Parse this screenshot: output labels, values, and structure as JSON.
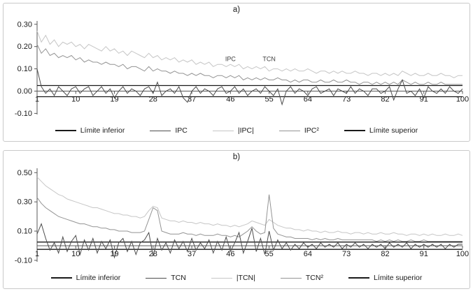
{
  "page": {
    "background": "#ffffff"
  },
  "chart_data": [
    {
      "type": "line",
      "title": "a)",
      "xlabel": "",
      "ylabel": "",
      "xlim": [
        1,
        100
      ],
      "ylim": [
        -0.105,
        0.315
      ],
      "x_ticks": [
        1,
        10,
        19,
        28,
        37,
        46,
        55,
        64,
        73,
        82,
        91,
        100
      ],
      "y_ticks": [
        0.3,
        0.2,
        0.1,
        0.0,
        -0.1
      ],
      "y_tick_labels": [
        "0.30",
        "0.20",
        "0.10",
        "0.00",
        "-0.10"
      ],
      "grid": false,
      "legend_position": "bottom",
      "draw_order": [
        2,
        3,
        0,
        4,
        1
      ],
      "annotations": [
        {
          "text": "IPC",
          "x": 46,
          "y": 0.135
        },
        {
          "text": "TCN",
          "x": 55,
          "y": 0.135
        }
      ],
      "series": [
        {
          "name": "Límite inferior",
          "color": "#1a1a1a",
          "lw": 1.3,
          "value": -0.025
        },
        {
          "name": "IPC",
          "color": "#4d4d4d",
          "lw": 1,
          "values": [
            0.1,
            0.02,
            -0.01,
            0.01,
            -0.02,
            0.02,
            0.0,
            -0.02,
            0.01,
            0.02,
            -0.01,
            0.01,
            0.02,
            -0.02,
            0.0,
            0.02,
            -0.01,
            0.01,
            -0.03,
            0.0,
            0.02,
            -0.01,
            0.01,
            0.0,
            -0.02,
            0.01,
            0.02,
            -0.01,
            0.04,
            -0.02,
            0.0,
            0.01,
            -0.01,
            0.02,
            -0.03,
            -0.05,
            0.0,
            0.02,
            -0.01,
            0.01,
            0.0,
            -0.02,
            0.01,
            0.02,
            -0.01,
            0.0,
            0.02,
            -0.01,
            0.01,
            -0.02,
            0.0,
            0.01,
            -0.01,
            0.02,
            0.0,
            -0.02,
            0.01,
            -0.06,
            0.0,
            0.02,
            -0.01,
            0.01,
            0.0,
            -0.02,
            0.01,
            0.02,
            -0.01,
            0.0,
            0.01,
            -0.02,
            0.01,
            0.0,
            -0.01,
            0.02,
            -0.01,
            0.01,
            0.0,
            -0.02,
            0.01,
            0.01,
            -0.01,
            0.0,
            0.02,
            -0.04,
            0.01,
            0.05,
            -0.01,
            0.0,
            -0.02,
            0.01,
            -0.03,
            0.02,
            0.0,
            -0.01,
            0.01,
            -0.01,
            0.02,
            0.0,
            -0.01,
            0.01
          ]
        },
        {
          "name": "|IPC|",
          "color": "#c6c6c6",
          "lw": 1,
          "values": [
            0.27,
            0.22,
            0.25,
            0.21,
            0.23,
            0.2,
            0.22,
            0.21,
            0.22,
            0.2,
            0.21,
            0.19,
            0.21,
            0.2,
            0.19,
            0.18,
            0.2,
            0.18,
            0.19,
            0.17,
            0.18,
            0.16,
            0.18,
            0.17,
            0.16,
            0.15,
            0.17,
            0.15,
            0.16,
            0.14,
            0.15,
            0.14,
            0.15,
            0.13,
            0.14,
            0.13,
            0.14,
            0.12,
            0.13,
            0.12,
            0.13,
            0.11,
            0.12,
            0.12,
            0.11,
            0.12,
            0.11,
            0.12,
            0.1,
            0.11,
            0.1,
            0.11,
            0.1,
            0.11,
            0.09,
            0.1,
            0.1,
            0.09,
            0.1,
            0.09,
            0.1,
            0.09,
            0.09,
            0.1,
            0.09,
            0.08,
            0.09,
            0.09,
            0.08,
            0.09,
            0.08,
            0.09,
            0.08,
            0.08,
            0.09,
            0.08,
            0.08,
            0.07,
            0.08,
            0.08,
            0.07,
            0.08,
            0.07,
            0.08,
            0.07,
            0.09,
            0.08,
            0.07,
            0.08,
            0.07,
            0.07,
            0.08,
            0.07,
            0.07,
            0.08,
            0.07,
            0.07,
            0.06,
            0.07,
            0.07
          ]
        },
        {
          "name": "IPC²",
          "color": "#949494",
          "lw": 1,
          "values": [
            0.21,
            0.17,
            0.19,
            0.16,
            0.17,
            0.15,
            0.16,
            0.15,
            0.16,
            0.14,
            0.15,
            0.13,
            0.14,
            0.13,
            0.13,
            0.12,
            0.13,
            0.12,
            0.12,
            0.11,
            0.12,
            0.1,
            0.11,
            0.11,
            0.1,
            0.09,
            0.11,
            0.09,
            0.1,
            0.09,
            0.09,
            0.08,
            0.09,
            0.08,
            0.08,
            0.07,
            0.08,
            0.07,
            0.08,
            0.07,
            0.07,
            0.06,
            0.07,
            0.07,
            0.06,
            0.07,
            0.06,
            0.07,
            0.05,
            0.06,
            0.05,
            0.06,
            0.05,
            0.06,
            0.05,
            0.05,
            0.06,
            0.05,
            0.05,
            0.04,
            0.05,
            0.04,
            0.05,
            0.05,
            0.04,
            0.04,
            0.05,
            0.04,
            0.04,
            0.05,
            0.04,
            0.04,
            0.05,
            0.04,
            0.04,
            0.03,
            0.04,
            0.04,
            0.03,
            0.04,
            0.03,
            0.04,
            0.03,
            0.04,
            0.03,
            0.05,
            0.04,
            0.03,
            0.04,
            0.03,
            0.03,
            0.04,
            0.03,
            0.03,
            0.04,
            0.03,
            0.03,
            0.03,
            0.03,
            0.03
          ]
        },
        {
          "name": "Límite superior",
          "color": "#1a1a1a",
          "lw": 1.3,
          "value": 0.025
        }
      ]
    },
    {
      "type": "line",
      "title": "b)",
      "xlabel": "",
      "ylabel": "",
      "xlim": [
        1,
        100
      ],
      "ylim": [
        -0.11,
        0.53
      ],
      "x_ticks": [
        1,
        10,
        19,
        28,
        37,
        46,
        55,
        64,
        73,
        82,
        91,
        100
      ],
      "y_ticks": [
        0.5,
        0.3,
        0.1,
        -0.1
      ],
      "y_tick_labels": [
        "0.50",
        "0.30",
        "0.10",
        "-0.10"
      ],
      "grid": false,
      "legend_position": "bottom",
      "draw_order": [
        2,
        3,
        0,
        4,
        1
      ],
      "annotations": [],
      "series": [
        {
          "name": "Límite inferior",
          "color": "#1a1a1a",
          "lw": 1.3,
          "value": -0.025
        },
        {
          "name": "TCN",
          "color": "#4d4d4d",
          "lw": 1,
          "values": [
            0.08,
            0.15,
            0.05,
            -0.03,
            0.02,
            -0.05,
            0.06,
            -0.04,
            0.03,
            0.07,
            -0.06,
            0.04,
            -0.03,
            0.05,
            -0.05,
            0.03,
            -0.02,
            0.04,
            -0.08,
            0.02,
            0.05,
            -0.04,
            0.03,
            -0.06,
            0.02,
            0.04,
            0.09,
            -0.07,
            0.05,
            -0.03,
            0.02,
            -0.05,
            0.04,
            -0.02,
            0.03,
            -0.04,
            0.05,
            -0.03,
            0.02,
            -0.02,
            0.04,
            -0.05,
            0.03,
            -0.03,
            0.06,
            -0.04,
            0.02,
            0.09,
            -0.05,
            0.03,
            0.12,
            -0.04,
            0.05,
            -0.06,
            0.1,
            -0.03,
            0.04,
            -0.02,
            0.02,
            -0.03,
            0.01,
            -0.02,
            0.02,
            -0.01,
            0.01,
            -0.02,
            0.02,
            -0.01,
            0.01,
            -0.01,
            0.02,
            -0.02,
            0.01,
            -0.01,
            0.02,
            -0.01,
            0.01,
            -0.02,
            0.01,
            -0.01,
            0.01,
            -0.02,
            0.02,
            -0.01,
            0.01,
            -0.01,
            0.02,
            -0.02,
            0.01,
            -0.01,
            0.01,
            -0.01,
            0.01,
            -0.01,
            0.01,
            -0.02,
            0.01,
            -0.01,
            0.01,
            0.01
          ]
        },
        {
          "name": "|TCN|",
          "color": "#c6c6c6",
          "lw": 1,
          "values": [
            0.47,
            0.44,
            0.41,
            0.39,
            0.37,
            0.35,
            0.34,
            0.32,
            0.31,
            0.3,
            0.29,
            0.28,
            0.27,
            0.26,
            0.26,
            0.25,
            0.24,
            0.23,
            0.22,
            0.22,
            0.21,
            0.21,
            0.2,
            0.2,
            0.19,
            0.2,
            0.24,
            0.27,
            0.26,
            0.19,
            0.18,
            0.17,
            0.17,
            0.16,
            0.17,
            0.16,
            0.16,
            0.15,
            0.16,
            0.15,
            0.15,
            0.14,
            0.15,
            0.14,
            0.14,
            0.13,
            0.14,
            0.13,
            0.14,
            0.15,
            0.17,
            0.16,
            0.15,
            0.14,
            0.18,
            0.16,
            0.14,
            0.13,
            0.12,
            0.12,
            0.11,
            0.11,
            0.1,
            0.11,
            0.1,
            0.1,
            0.09,
            0.1,
            0.09,
            0.09,
            0.1,
            0.09,
            0.09,
            0.08,
            0.09,
            0.09,
            0.08,
            0.09,
            0.08,
            0.08,
            0.09,
            0.08,
            0.08,
            0.09,
            0.08,
            0.08,
            0.07,
            0.08,
            0.08,
            0.07,
            0.08,
            0.07,
            0.08,
            0.07,
            0.07,
            0.08,
            0.07,
            0.07,
            0.08,
            0.07
          ]
        },
        {
          "name": "TCN²",
          "color": "#949494",
          "lw": 1,
          "values": [
            0.33,
            0.29,
            0.26,
            0.24,
            0.22,
            0.2,
            0.19,
            0.18,
            0.17,
            0.16,
            0.15,
            0.15,
            0.14,
            0.13,
            0.13,
            0.12,
            0.12,
            0.11,
            0.11,
            0.1,
            0.1,
            0.1,
            0.09,
            0.09,
            0.09,
            0.1,
            0.18,
            0.26,
            0.24,
            0.1,
            0.09,
            0.08,
            0.08,
            0.08,
            0.09,
            0.08,
            0.08,
            0.07,
            0.08,
            0.07,
            0.07,
            0.07,
            0.08,
            0.07,
            0.07,
            0.06,
            0.07,
            0.06,
            0.08,
            0.1,
            0.13,
            0.1,
            0.08,
            0.09,
            0.35,
            0.12,
            0.08,
            0.07,
            0.06,
            0.06,
            0.05,
            0.05,
            0.05,
            0.05,
            0.04,
            0.05,
            0.04,
            0.05,
            0.04,
            0.04,
            0.05,
            0.04,
            0.04,
            0.04,
            0.04,
            0.04,
            0.04,
            0.04,
            0.04,
            0.03,
            0.04,
            0.03,
            0.04,
            0.03,
            0.04,
            0.03,
            0.03,
            0.04,
            0.03,
            0.03,
            0.04,
            0.03,
            0.03,
            0.03,
            0.03,
            0.03,
            0.03,
            0.03,
            0.03,
            0.03
          ]
        },
        {
          "name": "Límite superior",
          "color": "#1a1a1a",
          "lw": 1.3,
          "value": 0.025
        }
      ]
    }
  ]
}
